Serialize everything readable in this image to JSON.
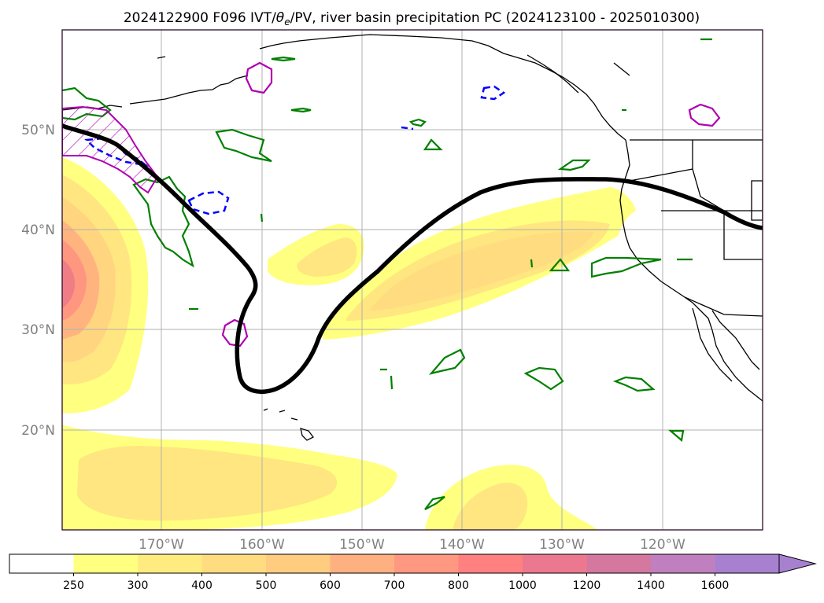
{
  "title_parts": {
    "prefix": "2024122900 F096 IVT/",
    "theta": "θ",
    "sub": "e",
    "suffix": "/PV, river basin precipitation PC (2024123100 - 2025010300)"
  },
  "map": {
    "lon_labels": [
      "170°W",
      "160°W",
      "150°W",
      "140°W",
      "130°W",
      "120°W"
    ],
    "lat_labels": [
      "50°N",
      "40°N",
      "30°N",
      "20°N"
    ],
    "lon_ticks_deg": [
      -170,
      -160,
      -150,
      -140,
      -130,
      -120
    ],
    "lat_ticks_deg": [
      50,
      40,
      30,
      20
    ],
    "extent": {
      "lon_min": -180,
      "lon_max": -110,
      "lat_min": 10,
      "lat_max": 60
    },
    "grid": true
  },
  "colorbar": {
    "labels": [
      "250",
      "300",
      "400",
      "500",
      "600",
      "700",
      "800",
      "1000",
      "1200",
      "1400",
      "1600"
    ],
    "colors": [
      "#ffffff",
      "#ffff80",
      "#ffec80",
      "#ffdc80",
      "#ffcc80",
      "#ffb080",
      "#ff9880",
      "#ff8080",
      "#ec7890",
      "#d478a0",
      "#c080c0",
      "#a880d0"
    ],
    "extend": "max"
  },
  "contours": {
    "ivt_fill_colors": [
      "#ffff80",
      "#ffe380",
      "#ffd080",
      "#ffb880",
      "#ffa080",
      "#ff8c80",
      "#f07888"
    ],
    "theta_e_color": "#000000",
    "pv_color": "#008000",
    "pv_negative_color": "#0000ff",
    "precip_color": "#b000b0"
  }
}
